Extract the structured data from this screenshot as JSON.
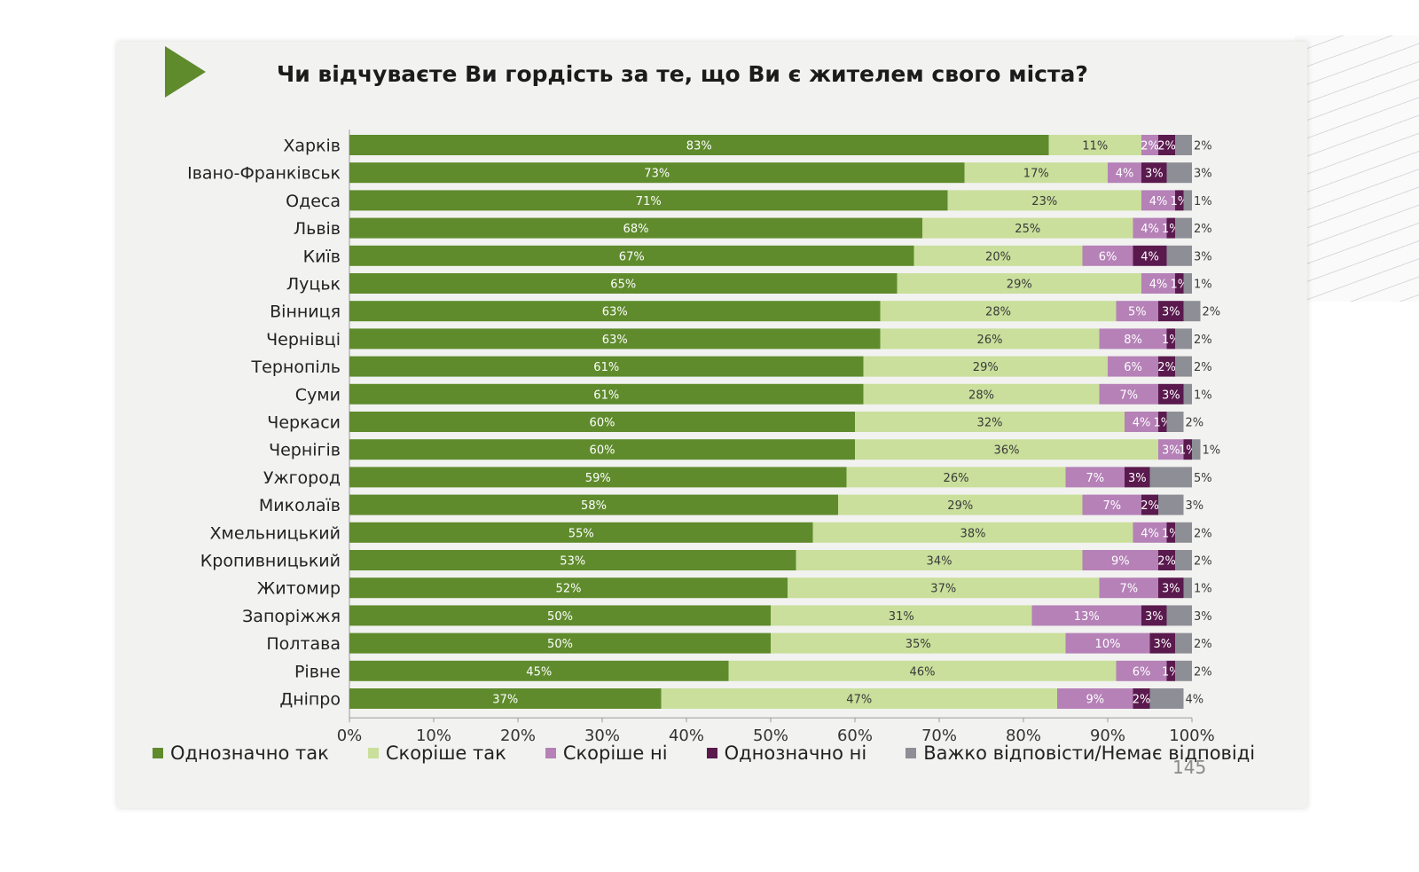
{
  "title": "Чи відчуваєте Ви гордість за те, що Ви є жителем свого міста?",
  "page_number": "145",
  "colors": {
    "definitely_yes": "#5f8b2c",
    "rather_yes": "#c9df9b",
    "rather_no": "#b581b7",
    "definitely_no": "#5a1a4e",
    "hard_to_say": "#8e8e96",
    "accent": "#5f8b2c"
  },
  "chart_data": {
    "type": "bar",
    "orientation": "horizontal",
    "stacked": true,
    "title": "Чи відчуваєте Ви гордість за те, що Ви є жителем свого міста?",
    "xlim": [
      0,
      100
    ],
    "x_ticks": [
      "0%",
      "10%",
      "20%",
      "30%",
      "40%",
      "50%",
      "60%",
      "70%",
      "80%",
      "90%",
      "100%"
    ],
    "legend_position": "bottom",
    "categories": [
      "Харків",
      "Івано-Франківськ",
      "Одеса",
      "Львів",
      "Київ",
      "Луцьк",
      "Вінниця",
      "Чернівці",
      "Тернопіль",
      "Суми",
      "Черкаси",
      "Чернігів",
      "Ужгород",
      "Миколаїв",
      "Хмельницький",
      "Кропивницький",
      "Житомир",
      "Запоріжжя",
      "Полтава",
      "Рівне",
      "Дніпро"
    ],
    "series": [
      {
        "name": "Однозначно так",
        "color": "#5f8b2c",
        "values": [
          83,
          73,
          71,
          68,
          67,
          65,
          63,
          63,
          61,
          61,
          60,
          60,
          59,
          58,
          55,
          53,
          52,
          50,
          50,
          45,
          37
        ]
      },
      {
        "name": "Скоріше так",
        "color": "#c9df9b",
        "values": [
          11,
          17,
          23,
          25,
          20,
          29,
          28,
          26,
          29,
          28,
          32,
          36,
          26,
          29,
          38,
          34,
          37,
          31,
          35,
          46,
          47
        ]
      },
      {
        "name": "Скоріше ні",
        "color": "#b581b7",
        "values": [
          2,
          4,
          4,
          4,
          6,
          4,
          5,
          8,
          6,
          7,
          4,
          3,
          7,
          7,
          4,
          9,
          7,
          13,
          10,
          6,
          9
        ]
      },
      {
        "name": "Однозначно ні",
        "color": "#5a1a4e",
        "values": [
          2,
          3,
          1,
          1,
          4,
          1,
          3,
          1,
          2,
          3,
          1,
          1,
          3,
          2,
          1,
          2,
          3,
          3,
          3,
          1,
          2
        ]
      },
      {
        "name": "Важко відповісти/Немає відповіді",
        "color": "#8e8e96",
        "values": [
          2,
          3,
          1,
          2,
          3,
          1,
          2,
          2,
          2,
          1,
          2,
          1,
          5,
          3,
          2,
          2,
          1,
          3,
          2,
          2,
          4
        ]
      }
    ]
  }
}
